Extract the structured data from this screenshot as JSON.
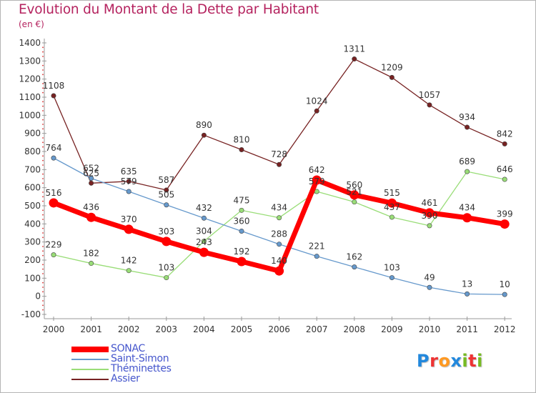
{
  "chart_data": {
    "type": "line",
    "title": "Evolution du Montant de la Dette par Habitant",
    "subtitle": "(en €)",
    "xlabel": "",
    "ylabel": "",
    "categories": [
      "2000",
      "2001",
      "2002",
      "2003",
      "2004",
      "2005",
      "2006",
      "2007",
      "2008",
      "2009",
      "2010",
      "2011",
      "2012"
    ],
    "ylim": [
      -100,
      1400
    ],
    "yticks": [
      -100,
      0,
      100,
      200,
      300,
      400,
      500,
      600,
      700,
      800,
      900,
      1000,
      1100,
      1200,
      1300,
      1400
    ],
    "grid": false,
    "legend_position": "bottom-left",
    "series": [
      {
        "name": "SONAC",
        "values": [
          516,
          436,
          370,
          303,
          243,
          192,
          140,
          642,
          560,
          515,
          461,
          434,
          399
        ],
        "color": "#ff0000",
        "thick": true
      },
      {
        "name": "Saint-Simon",
        "values": [
          764,
          652,
          579,
          505,
          432,
          360,
          288,
          221,
          162,
          103,
          49,
          13,
          10
        ],
        "color": "#6699cc"
      },
      {
        "name": "Théminettes",
        "values": [
          229,
          182,
          142,
          103,
          304,
          475,
          434,
          579,
          521,
          437,
          390,
          689,
          646
        ],
        "color": "#99dd77"
      },
      {
        "name": "Assier",
        "values": [
          1108,
          625,
          635,
          587,
          890,
          810,
          728,
          1024,
          1311,
          1209,
          1057,
          934,
          842
        ],
        "color": "#772222"
      }
    ]
  },
  "logo": {
    "letters": [
      "P",
      "r",
      "o",
      "x",
      "i",
      "t",
      "i"
    ],
    "colors": [
      "#2288dd",
      "#ee3333",
      "#ff9922",
      "#2288dd",
      "#77bb22",
      "#ee3333",
      "#77bb22"
    ]
  }
}
